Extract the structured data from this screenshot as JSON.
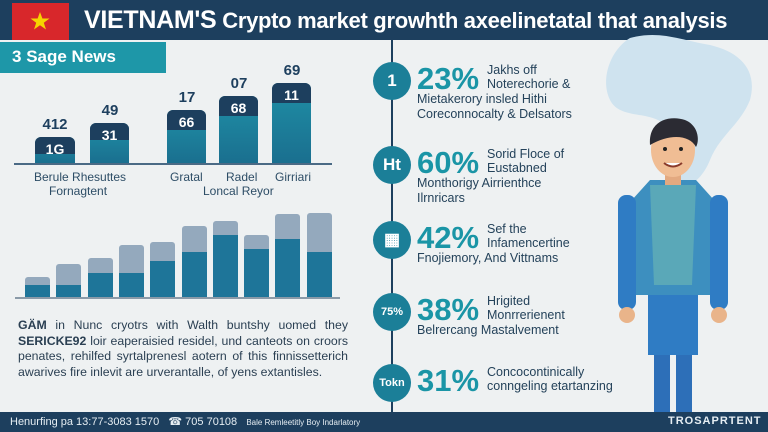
{
  "header": {
    "title_strong": "VIETNAM'S",
    "title_rest": "Crypto market growhth axeelinetatal that analysis",
    "flag_colors": {
      "field": "#d8272b",
      "star": "#f6d300"
    }
  },
  "banner": {
    "label": "Sage News",
    "icon": "number-3-icon"
  },
  "chart_top": {
    "groups": [
      {
        "name": "Berule Rhesuttes",
        "sub": "Fornagtent"
      },
      {
        "name": "Grata / Radel / Girriari",
        "sub": "Loncal Reyor"
      }
    ],
    "category_labels": [
      "Berule Rhesuttes",
      "Fornagtent",
      "Gratal",
      "Radel",
      "Girriari",
      "Loncal Reyor"
    ],
    "bars": [
      {
        "above": "412",
        "inner": "1G"
      },
      {
        "above": "49",
        "inner": "31"
      },
      {
        "above": "17",
        "inner": "66"
      },
      {
        "above": "07",
        "inner": "68"
      },
      {
        "above": "69",
        "inner": "11"
      }
    ]
  },
  "chart_data": {
    "type": "bar",
    "stacked": true,
    "grid": false,
    "values_total": [
      20,
      33,
      39,
      52,
      55,
      71,
      76,
      62,
      83,
      84
    ],
    "values_inner": [
      12,
      12,
      24,
      24,
      36,
      45,
      62,
      48,
      58,
      45
    ],
    "colors": {
      "inner": "#1e7599",
      "total": "#94a9bd"
    }
  },
  "body_text": {
    "lead": "GÄM",
    "line": "in Nunc cryotrs with Walth buntshy uomed they",
    "lead2": "SERICKE92",
    "rest": "loir eaperaisied residel, und canteots on croors penates, rehilfed syrtalprenesl aotern of this finnissetterich awarives fire inlevit are urverantalle, of yens extantisles."
  },
  "timeline": [
    {
      "icon_text": "1",
      "pct": "23%",
      "l1": "Jakhs off",
      "l2": "Noterechorie &",
      "l3": "Mietakerory insled Hithi",
      "l4": "Coreconnocalty & Delsators"
    },
    {
      "icon_text": "Ht",
      "pct": "60%",
      "l1": "Sorid Floce of",
      "l2": "Eustabned",
      "l3": "Monthorigy Airrienthce",
      "l4": "Ilrnricars"
    },
    {
      "icon_text": "▦",
      "pct": "42%",
      "l1": "Sef the",
      "l2": "Infamencertine",
      "l3": "Fnojiemory, And Vittnams",
      "l4": ""
    },
    {
      "icon_text": "75%",
      "pct": "38%",
      "l1": "Hrigited",
      "l2": "Monrrerienent",
      "l3": "Belrercang Mastalvement",
      "l4": ""
    },
    {
      "icon_text": "Tokn",
      "pct": "31%",
      "l1": "Concocontinically",
      "l2": "conngeling etartanzing",
      "l3": "",
      "l4": ""
    }
  ],
  "footer": {
    "left": "Henurfing pa 13:77-3083 1570",
    "phone": "705 70108",
    "note": "Bale Remleetitly Boy Indarlatory",
    "brand": "TROSAPRTENT"
  }
}
